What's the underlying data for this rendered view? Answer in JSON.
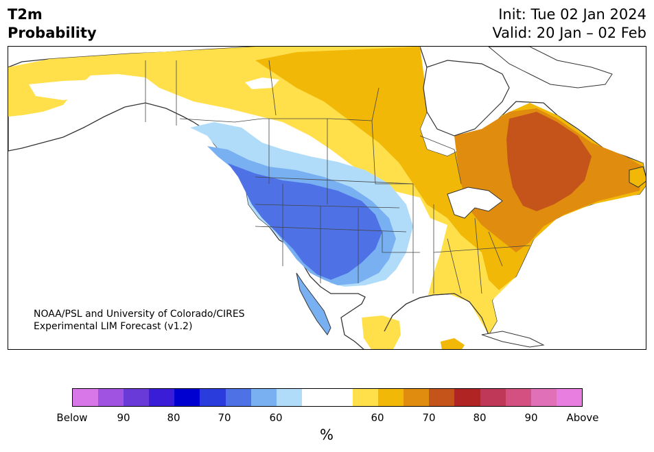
{
  "title": {
    "line1": "T2m",
    "line2": "Probability"
  },
  "init": {
    "line1": "Init: Tue 02 Jan 2024",
    "line2": "Valid: 20 Jan – 02 Feb"
  },
  "credit": {
    "line1": "NOAA/PSL and University of Colorado/CIRES",
    "line2": "Experimental LIM Forecast (v1.2)"
  },
  "colorbar": {
    "colors": [
      "#d877e8",
      "#a053e0",
      "#6a3ad8",
      "#3a1dd6",
      "#0000d0",
      "#2a3cdc",
      "#4e72e6",
      "#78b0f2",
      "#b0dcfa",
      "#ffffff",
      "#ffffff",
      "#ffe04a",
      "#f2b808",
      "#e08c0e",
      "#c4541a",
      "#b02424",
      "#c03858",
      "#d45080",
      "#e070b8",
      "#e87ee0"
    ],
    "ticks": [
      "Below",
      "90",
      "80",
      "70",
      "60",
      "60",
      "70",
      "80",
      "90",
      "Above"
    ],
    "unit": "%"
  },
  "map": {
    "ocean": "#ffffff",
    "border_color": "#333333"
  }
}
